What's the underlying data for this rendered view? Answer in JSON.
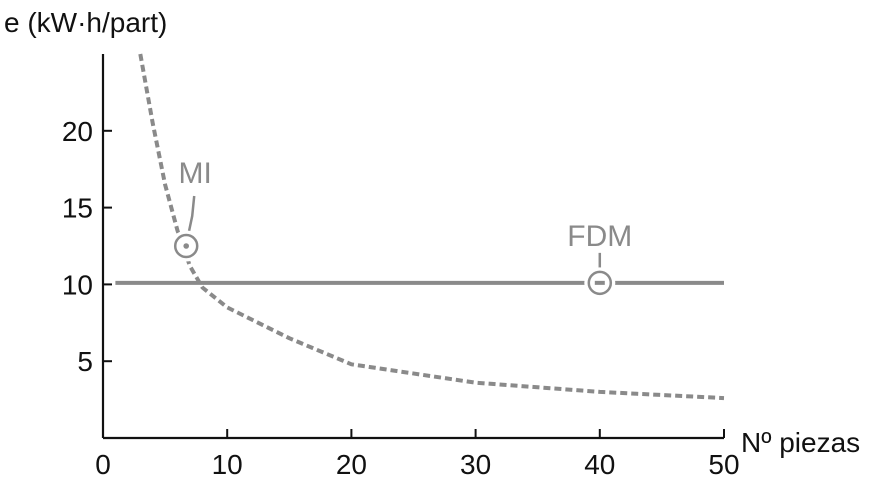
{
  "chart_data": {
    "type": "line",
    "title": "",
    "ylabel": "e (kW·h/part)",
    "xlabel": "Nº piezas",
    "xlim": [
      0,
      50
    ],
    "ylim": [
      0,
      25
    ],
    "x_ticks": [
      0,
      10,
      20,
      30,
      40,
      50
    ],
    "y_ticks": [
      5,
      10,
      15,
      20
    ],
    "grid": false,
    "series": [
      {
        "name": "MI",
        "style": "dashed",
        "color": "#8a8a8a",
        "x": [
          3,
          4,
          5,
          6,
          7,
          8,
          10,
          15,
          20,
          30,
          40,
          50
        ],
        "y": [
          25,
          20.5,
          16.5,
          13.5,
          11.2,
          9.8,
          8.5,
          6.5,
          4.8,
          3.6,
          3.0,
          2.6
        ]
      },
      {
        "name": "FDM",
        "style": "solid",
        "color": "#8a8a8a",
        "x": [
          1,
          50
        ],
        "y": [
          10.1,
          10.1
        ]
      }
    ],
    "annotations": [
      {
        "text": "MI",
        "marker_x": 6.7,
        "marker_y": 12.5,
        "marker_symbol": "⊙"
      },
      {
        "text": "FDM",
        "marker_x": 40,
        "marker_y": 10.1,
        "marker_symbol": "⊖"
      }
    ]
  }
}
